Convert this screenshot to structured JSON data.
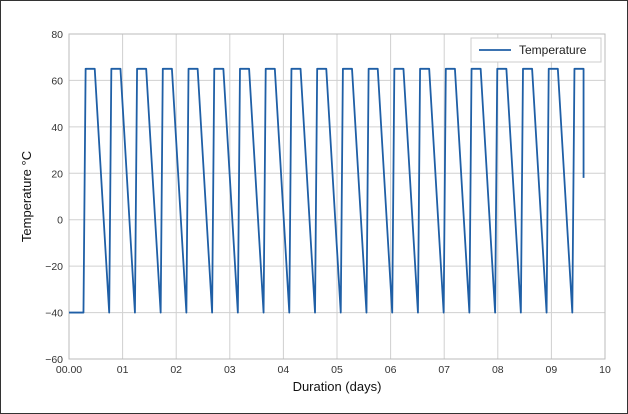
{
  "chart_data": {
    "type": "line",
    "title": "",
    "xlabel": "Duration (days)",
    "ylabel": "Temperature °C",
    "xlim": [
      0,
      10
    ],
    "ylim": [
      -60,
      80
    ],
    "x_ticks": [
      0,
      1,
      2,
      3,
      4,
      5,
      6,
      7,
      8,
      9,
      10
    ],
    "x_tick_labels": [
      "00.00",
      "01",
      "02",
      "03",
      "04",
      "05",
      "06",
      "07",
      "08",
      "09",
      "10"
    ],
    "y_ticks": [
      -60,
      -40,
      -20,
      0,
      20,
      40,
      60,
      80
    ],
    "y_tick_labels": [
      "−60",
      "−40",
      "−20",
      "0",
      "20",
      "40",
      "60",
      "80"
    ],
    "grid": true,
    "legend_position": "top-right",
    "colors": {
      "series": "#1f5fa6",
      "grid": "#d0d0d0",
      "axis": "#bbbbbb"
    },
    "series": [
      {
        "name": "Temperature",
        "cycle_period_days": 0.48,
        "x": [
          0.0,
          0.27,
          0.31,
          0.48,
          0.75,
          0.79,
          0.96,
          1.23,
          1.27,
          1.44,
          1.71,
          1.75,
          1.92,
          2.19,
          2.23,
          2.4,
          2.67,
          2.71,
          2.88,
          3.15,
          3.19,
          3.36,
          3.63,
          3.67,
          3.84,
          4.11,
          4.15,
          4.32,
          4.59,
          4.63,
          4.8,
          5.07,
          5.11,
          5.28,
          5.55,
          5.59,
          5.76,
          6.03,
          6.07,
          6.24,
          6.51,
          6.55,
          6.72,
          6.99,
          7.03,
          7.2,
          7.47,
          7.51,
          7.68,
          7.95,
          7.99,
          8.16,
          8.43,
          8.47,
          8.64,
          8.91,
          8.95,
          9.12,
          9.39,
          9.43,
          9.6
        ],
        "y": [
          -40,
          -40,
          65,
          65,
          -40,
          65,
          65,
          -40,
          65,
          65,
          -40,
          65,
          65,
          -40,
          65,
          65,
          -40,
          65,
          65,
          -40,
          65,
          65,
          -40,
          65,
          65,
          -40,
          65,
          65,
          -40,
          65,
          65,
          -40,
          65,
          65,
          -40,
          65,
          65,
          -40,
          65,
          65,
          -40,
          65,
          65,
          -40,
          65,
          65,
          -40,
          65,
          65,
          -40,
          65,
          65,
          -40,
          65,
          65,
          -40,
          65,
          65,
          -40,
          65,
          65
        ]
      }
    ]
  }
}
